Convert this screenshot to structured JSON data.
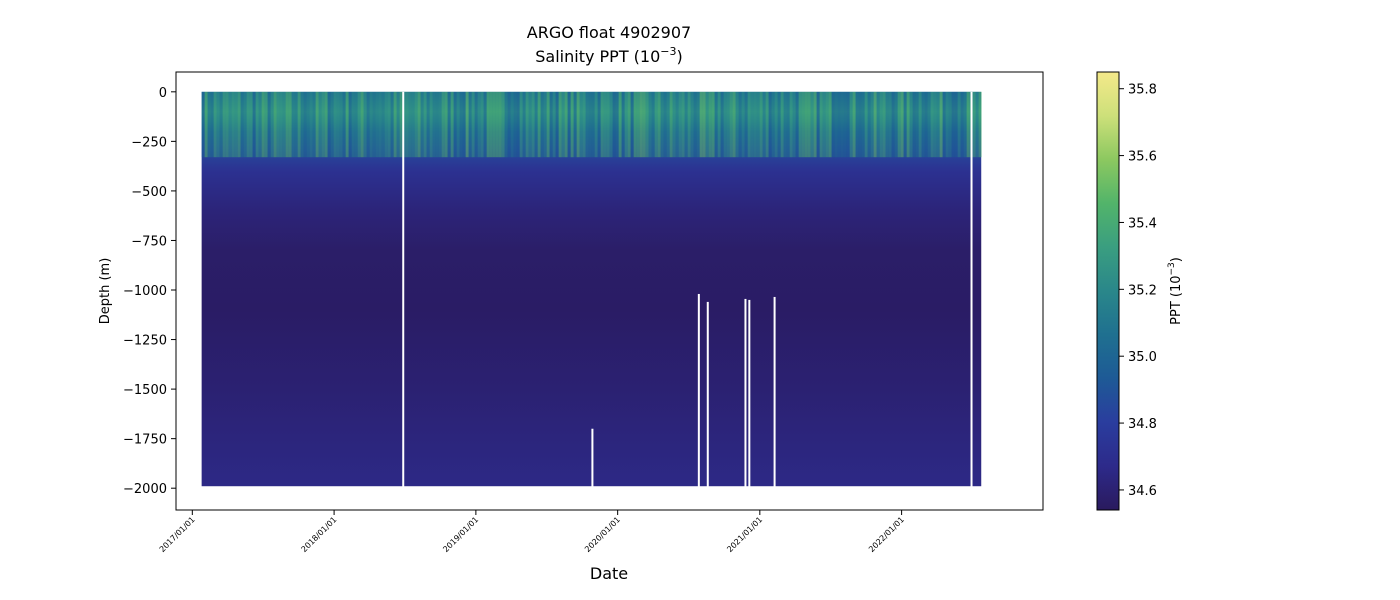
{
  "chart_data": {
    "type": "heatmap",
    "title_line1": "ARGO float 4902907",
    "title_line2_base": "Salinity PPT (10",
    "title_line2_exp": "−3",
    "title_line2_tail": ")",
    "xlabel": "Date",
    "ylabel": "Depth (m)",
    "colorbar_label_base": "PPT (10",
    "colorbar_label_exp": "−3",
    "colorbar_label_tail": ")",
    "colormap": "haline",
    "colormap_colors": [
      "#2a1a5e",
      "#2d2a8a",
      "#2a3d9e",
      "#1e5a96",
      "#1f7090",
      "#2a878a",
      "#3a9e80",
      "#52b46a",
      "#8cc860",
      "#cde07a",
      "#f4e98a"
    ],
    "x_range": [
      "2016-11-20",
      "2022-12-31"
    ],
    "x_tick_labels": [
      "2017/01/01",
      "2018/01/01",
      "2019/01/01",
      "2020/01/01",
      "2021/01/01",
      "2022/01/01"
    ],
    "x_tick_dates": [
      "2017-01-01",
      "2018-01-01",
      "2019-01-01",
      "2020-01-01",
      "2021-01-01",
      "2022-01-01"
    ],
    "ylim": [
      -2110,
      100
    ],
    "y_ticks": [
      0,
      -250,
      -500,
      -750,
      -1000,
      -1250,
      -1500,
      -1750,
      -2000
    ],
    "y_tick_labels": [
      "0",
      "−250",
      "−500",
      "−750",
      "−1000",
      "−1250",
      "−1500",
      "−1750",
      "−2000"
    ],
    "data_extent": {
      "start": "2017-01-25",
      "end": "2022-07-25",
      "top_depth": 0,
      "bottom_depth": -1990
    },
    "salinity_profile": [
      {
        "depth": 0,
        "value": 35.05
      },
      {
        "depth": -50,
        "value": 35.15
      },
      {
        "depth": -100,
        "value": 35.25
      },
      {
        "depth": -150,
        "value": 35.15
      },
      {
        "depth": -200,
        "value": 35.0
      },
      {
        "depth": -300,
        "value": 34.85
      },
      {
        "depth": -400,
        "value": 34.72
      },
      {
        "depth": -600,
        "value": 34.62
      },
      {
        "depth": -800,
        "value": 34.57
      },
      {
        "depth": -1100,
        "value": 34.56
      },
      {
        "depth": -1500,
        "value": 34.6
      },
      {
        "depth": -2000,
        "value": 34.66
      }
    ],
    "data_gaps": [
      {
        "date": "2018-06-28",
        "top_depth": 0
      },
      {
        "date": "2019-10-28",
        "top_depth": -1700
      },
      {
        "date": "2020-07-28",
        "top_depth": -1020
      },
      {
        "date": "2020-08-20",
        "top_depth": -1060
      },
      {
        "date": "2020-11-25",
        "top_depth": -1045
      },
      {
        "date": "2020-12-05",
        "top_depth": -1050
      },
      {
        "date": "2021-02-08",
        "top_depth": -1035
      },
      {
        "date": "2022-06-30",
        "top_depth": 0
      }
    ],
    "colorbar": {
      "range": [
        34.54,
        35.85
      ],
      "ticks": [
        34.6,
        34.8,
        35.0,
        35.2,
        35.4,
        35.6,
        35.8
      ],
      "tick_labels": [
        "34.6",
        "34.8",
        "35.0",
        "35.2",
        "35.4",
        "35.6",
        "35.8"
      ]
    },
    "grid": false
  }
}
